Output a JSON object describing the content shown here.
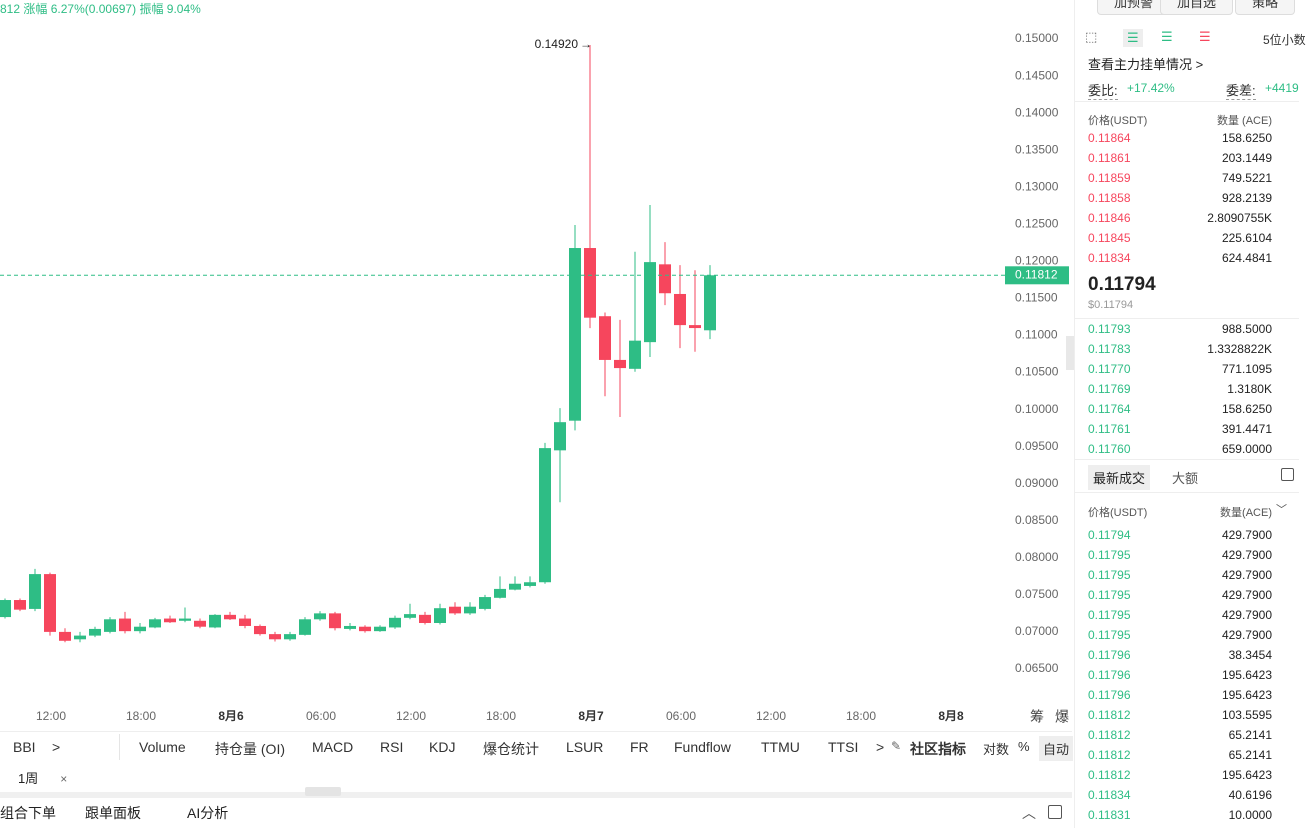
{
  "header": {
    "last": "812",
    "change": "涨幅 6.27%(0.00697)",
    "amplitude": "振幅 9.04%"
  },
  "chart_data": {
    "type": "candlestick",
    "up_color": "#2ebd85",
    "down_color": "#f6465d",
    "x": [
      0,
      1,
      2,
      3,
      4,
      5,
      6,
      7,
      8,
      9,
      10,
      11,
      12,
      13,
      14,
      15,
      16,
      17,
      18,
      19,
      20,
      21,
      22,
      23,
      24,
      25,
      26,
      27,
      28,
      29,
      30,
      31,
      32,
      33,
      34,
      35,
      36,
      37,
      38,
      39,
      40,
      41,
      42,
      43,
      44,
      45,
      46,
      47
    ],
    "open": [
      0.072,
      0.0743,
      0.0731,
      0.0778,
      0.07,
      0.069,
      0.0695,
      0.07,
      0.0718,
      0.0701,
      0.0706,
      0.0718,
      0.0715,
      0.0715,
      0.0706,
      0.0723,
      0.0718,
      0.0708,
      0.0697,
      0.069,
      0.0696,
      0.0717,
      0.0725,
      0.0704,
      0.0707,
      0.0701,
      0.0706,
      0.0719,
      0.0723,
      0.0712,
      0.0734,
      0.0725,
      0.0731,
      0.0746,
      0.0757,
      0.0762,
      0.0767,
      0.0945,
      0.0985,
      0.1218,
      0.1126,
      0.1067,
      0.1055,
      0.1091,
      0.1196,
      0.1156,
      0.1114,
      0.1107
    ],
    "high": [
      0.0745,
      0.0745,
      0.0785,
      0.078,
      0.0705,
      0.07,
      0.0707,
      0.072,
      0.0727,
      0.0712,
      0.0719,
      0.0722,
      0.0733,
      0.0718,
      0.0724,
      0.0727,
      0.0723,
      0.071,
      0.07,
      0.07,
      0.072,
      0.0728,
      0.0727,
      0.0712,
      0.0709,
      0.0709,
      0.0722,
      0.0738,
      0.0727,
      0.0738,
      0.074,
      0.074,
      0.075,
      0.0775,
      0.0775,
      0.0775,
      0.0955,
      0.1002,
      0.1249,
      0.1492,
      0.1131,
      0.1121,
      0.1213,
      0.1276,
      0.1226,
      0.1195,
      0.1188,
      0.1195
    ],
    "low": [
      0.0718,
      0.0728,
      0.0728,
      0.0695,
      0.0686,
      0.0686,
      0.0693,
      0.0698,
      0.0698,
      0.0698,
      0.0705,
      0.0712,
      0.0713,
      0.0705,
      0.0705,
      0.0716,
      0.0705,
      0.0695,
      0.0687,
      0.0688,
      0.0695,
      0.0715,
      0.0702,
      0.0702,
      0.0699,
      0.07,
      0.0704,
      0.0717,
      0.071,
      0.071,
      0.0723,
      0.0723,
      0.0729,
      0.0745,
      0.0756,
      0.076,
      0.0765,
      0.0875,
      0.0972,
      0.111,
      0.1018,
      0.099,
      0.1051,
      0.1071,
      0.1141,
      0.1083,
      0.1078,
      0.1095
    ],
    "close": [
      0.0743,
      0.073,
      0.0778,
      0.07,
      0.0688,
      0.0695,
      0.0704,
      0.0717,
      0.0701,
      0.0707,
      0.0717,
      0.0713,
      0.0718,
      0.0707,
      0.0723,
      0.0717,
      0.0708,
      0.0697,
      0.069,
      0.0697,
      0.0717,
      0.0725,
      0.0705,
      0.0708,
      0.0701,
      0.0707,
      0.0719,
      0.0724,
      0.0712,
      0.0732,
      0.0725,
      0.0734,
      0.0747,
      0.0758,
      0.0765,
      0.0767,
      0.0948,
      0.0983,
      0.1218,
      0.1124,
      0.1067,
      0.1056,
      0.1093,
      0.1199,
      0.1157,
      0.1114,
      0.111,
      0.11812
    ],
    "xlim": [
      0,
      66
    ],
    "xticks": [
      {
        "value": 3,
        "label": "12:00"
      },
      {
        "value": 9,
        "label": "18:00"
      },
      {
        "value": 15,
        "label": "8月6"
      },
      {
        "value": 21,
        "label": "06:00"
      },
      {
        "value": 27,
        "label": "12:00"
      },
      {
        "value": 33,
        "label": "18:00"
      },
      {
        "value": 39,
        "label": "8月7"
      },
      {
        "value": 45,
        "label": "06:00"
      },
      {
        "value": 51,
        "label": "12:00"
      },
      {
        "value": 57,
        "label": "18:00"
      },
      {
        "value": 63,
        "label": "8月8"
      }
    ],
    "ylim": [
      0.06,
      0.155
    ],
    "yticks": [
      {
        "value": 0.065,
        "label": "0.06500"
      },
      {
        "value": 0.07,
        "label": "0.07000"
      },
      {
        "value": 0.075,
        "label": "0.07500"
      },
      {
        "value": 0.08,
        "label": "0.08000"
      },
      {
        "value": 0.085,
        "label": "0.08500"
      },
      {
        "value": 0.09,
        "label": "0.09000"
      },
      {
        "value": 0.095,
        "label": "0.09500"
      },
      {
        "value": 0.1,
        "label": "0.10000"
      },
      {
        "value": 0.105,
        "label": "0.10500"
      },
      {
        "value": 0.11,
        "label": "0.11000"
      },
      {
        "value": 0.115,
        "label": "0.11500"
      },
      {
        "value": 0.12,
        "label": "0.12000"
      },
      {
        "value": 0.125,
        "label": "0.12500"
      },
      {
        "value": 0.13,
        "label": "0.13000"
      },
      {
        "value": 0.135,
        "label": "0.13500"
      },
      {
        "value": 0.14,
        "label": "0.14000"
      },
      {
        "value": 0.145,
        "label": "0.14500"
      },
      {
        "value": 0.15,
        "label": "0.15000"
      }
    ],
    "price_line": {
      "value": 0.11812,
      "label": "0.11812"
    },
    "max_label": {
      "value": 0.1492,
      "label": "0.14920"
    }
  },
  "axis_tools": [
    "筹",
    "爆"
  ],
  "indicators": [
    "BBI",
    ">",
    "Volume",
    "持仓量 (OI)",
    "MACD",
    "RSI",
    "KDJ",
    "爆仓统计",
    "LSUR",
    "FR",
    "Fundflow",
    "TTMU",
    "TTSI",
    ">",
    "社区指标",
    "对数",
    "%",
    "自动"
  ],
  "timeframe": {
    "label": "1周",
    "close": "×"
  },
  "bottom_tabs": [
    "组合下单",
    "跟单面板",
    "AI分析"
  ],
  "right_panel": {
    "buttons": [
      "加预警",
      "加自选",
      "策略"
    ],
    "precision": "5位小数",
    "main_orders": "查看主力挂单情况 >",
    "ratio_label": "委比:",
    "ratio": "+17.42%",
    "diff_label": "委差:",
    "diff": "+4419",
    "book_header": [
      "价格(USDT)",
      "数量 (ACE)"
    ],
    "asks": [
      [
        "0.11864",
        "158.6250"
      ],
      [
        "0.11861",
        "203.1449"
      ],
      [
        "0.11859",
        "749.5221"
      ],
      [
        "0.11858",
        "928.2139"
      ],
      [
        "0.11846",
        "2.8090755K"
      ],
      [
        "0.11845",
        "225.6104"
      ],
      [
        "0.11834",
        "624.4841"
      ]
    ],
    "last_price": "0.11794",
    "last_price_usd": "$0.11794",
    "bids": [
      [
        "0.11793",
        "988.5000"
      ],
      [
        "0.11783",
        "1.3328822K"
      ],
      [
        "0.11770",
        "771.1095"
      ],
      [
        "0.11769",
        "1.3180K"
      ],
      [
        "0.11764",
        "158.6250"
      ],
      [
        "0.11761",
        "391.4471"
      ],
      [
        "0.11760",
        "659.0000"
      ]
    ],
    "trade_tabs": [
      "最新成交",
      "大额"
    ],
    "trade_header": [
      "价格(USDT)",
      "数量(ACE)"
    ],
    "trades": [
      [
        "0.11794",
        "429.7900"
      ],
      [
        "0.11795",
        "429.7900"
      ],
      [
        "0.11795",
        "429.7900"
      ],
      [
        "0.11795",
        "429.7900"
      ],
      [
        "0.11795",
        "429.7900"
      ],
      [
        "0.11795",
        "429.7900"
      ],
      [
        "0.11796",
        "38.3454"
      ],
      [
        "0.11796",
        "195.6423"
      ],
      [
        "0.11796",
        "195.6423"
      ],
      [
        "0.11812",
        "103.5595"
      ],
      [
        "0.11812",
        "65.2141"
      ],
      [
        "0.11812",
        "65.2141"
      ],
      [
        "0.11812",
        "195.6423"
      ],
      [
        "0.11834",
        "40.6196"
      ],
      [
        "0.11831",
        "10.0000"
      ]
    ]
  }
}
